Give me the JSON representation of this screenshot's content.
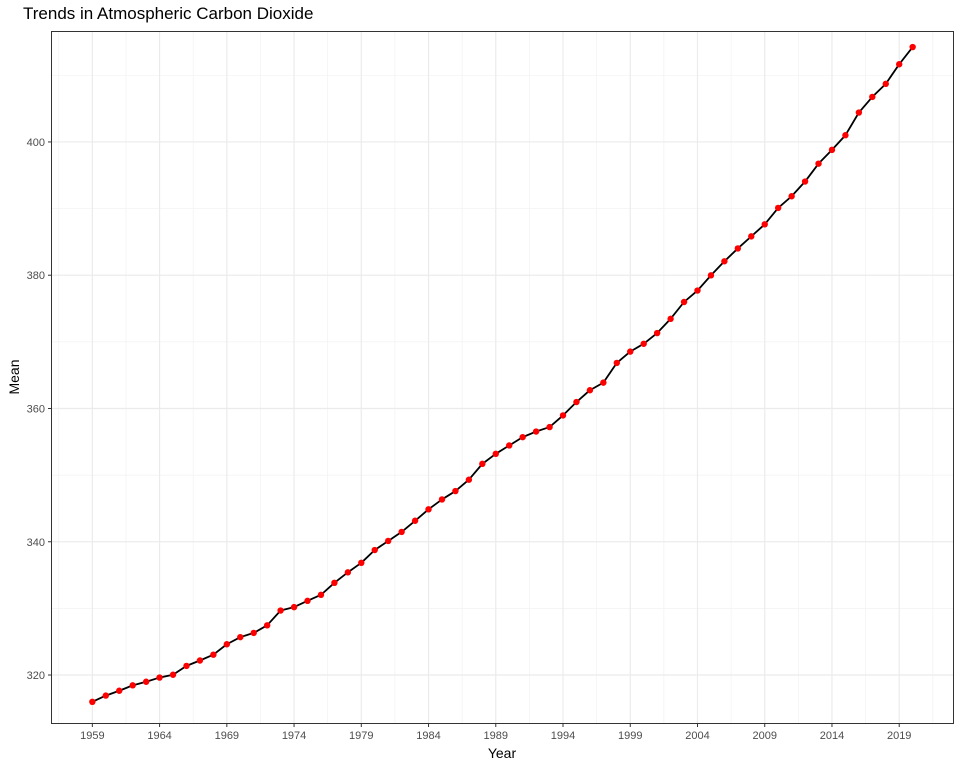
{
  "chart_data": {
    "type": "line",
    "title": "Trends in Atmospheric Carbon Dioxide",
    "xlabel": "Year",
    "ylabel": "Mean",
    "xlim": [
      1956,
      2023
    ],
    "ylim": [
      312.8,
      416.5
    ],
    "x_ticks": [
      1959,
      1964,
      1969,
      1974,
      1979,
      1984,
      1989,
      1994,
      1999,
      2004,
      2009,
      2014,
      2019
    ],
    "x_ticks_display": [
      "1959",
      "1964",
      "1969",
      "1974",
      "1979",
      "1984",
      "1989",
      "1994",
      "1999",
      "2004",
      "2009",
      "2014",
      "2019"
    ],
    "y_ticks": [
      320,
      340,
      360,
      380,
      400
    ],
    "y_ticks_display": [
      "320",
      "340",
      "360",
      "380",
      "400"
    ],
    "grid": true,
    "line_color": "#000000",
    "point_color": "#ff0000",
    "x": [
      1959,
      1960,
      1961,
      1962,
      1963,
      1964,
      1965,
      1966,
      1967,
      1968,
      1969,
      1970,
      1971,
      1972,
      1973,
      1974,
      1975,
      1976,
      1977,
      1978,
      1979,
      1980,
      1981,
      1982,
      1983,
      1984,
      1985,
      1986,
      1987,
      1988,
      1989,
      1990,
      1991,
      1992,
      1993,
      1994,
      1995,
      1996,
      1997,
      1998,
      1999,
      2000,
      2001,
      2002,
      2003,
      2004,
      2005,
      2006,
      2007,
      2008,
      2009,
      2010,
      2011,
      2012,
      2013,
      2014,
      2015,
      2016,
      2017,
      2018,
      2019,
      2020
    ],
    "y": [
      315.98,
      316.91,
      317.64,
      318.45,
      318.99,
      319.62,
      320.04,
      321.37,
      322.18,
      323.05,
      324.62,
      325.68,
      326.32,
      327.46,
      329.68,
      330.19,
      331.13,
      332.03,
      333.84,
      335.41,
      336.84,
      338.76,
      340.12,
      341.48,
      343.15,
      344.87,
      346.35,
      347.61,
      349.31,
      351.69,
      353.2,
      354.45,
      355.7,
      356.54,
      357.21,
      358.96,
      360.97,
      362.74,
      363.88,
      366.84,
      368.54,
      369.71,
      371.32,
      373.45,
      375.98,
      377.7,
      379.98,
      382.09,
      384.02,
      385.83,
      387.64,
      390.1,
      391.85,
      394.06,
      396.74,
      398.81,
      401.01,
      404.41,
      406.76,
      408.72,
      411.66,
      414.24
    ]
  }
}
